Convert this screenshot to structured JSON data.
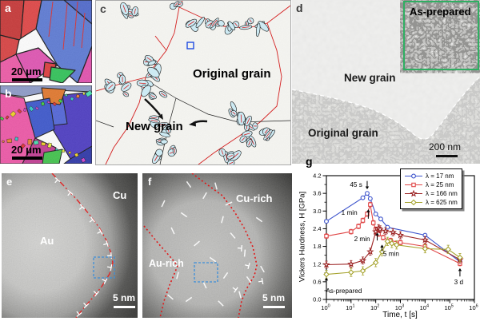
{
  "figure": {
    "panels": {
      "a": {
        "label": "a",
        "scale_bar": "20 μm"
      },
      "b": {
        "label": "b",
        "scale_bar": "20 μm"
      },
      "c": {
        "label": "c",
        "original_grain": "Original grain",
        "new_grain": "New grain"
      },
      "d": {
        "label": "d",
        "inset_label": "As-prepared",
        "new_grain": "New grain",
        "original_grain": "Original grain",
        "scale_bar": "200 nm"
      },
      "e": {
        "label": "e",
        "upper_region": "Cu",
        "lower_region": "Au",
        "scale_bar": "5 nm"
      },
      "f": {
        "label": "f",
        "upper_region": "Cu-rich",
        "lower_region": "Au-rich",
        "scale_bar": "5 nm"
      },
      "g": {
        "label": "g"
      }
    }
  },
  "chart_data": {
    "type": "line",
    "x_scale": "log",
    "xlabel": "Time, t [s]",
    "ylabel": "Vickers Hardness, H [GPa]",
    "xlim": [
      1,
      1000000
    ],
    "ylim": [
      0,
      4.2
    ],
    "y_ticks": [
      0,
      0.6,
      1.2,
      1.8,
      2.4,
      3,
      3.6,
      4.2
    ],
    "x_tick_exponents": [
      0,
      1,
      2,
      3,
      4,
      5,
      6
    ],
    "grid": false,
    "legend_position": "top-right",
    "series": [
      {
        "name": "λ = 17 nm",
        "color": "#3b52cc",
        "marker": "circle",
        "err": 0.05,
        "points": [
          [
            1,
            2.65
          ],
          [
            30,
            3.45
          ],
          [
            45,
            3.6
          ],
          [
            60,
            3.42
          ],
          [
            100,
            2.9
          ],
          [
            160,
            2.73
          ],
          [
            300,
            2.45
          ],
          [
            10000,
            2.18
          ],
          [
            259200,
            1.28
          ]
        ]
      },
      {
        "name": "λ = 25 nm",
        "color": "#e04848",
        "marker": "square",
        "err": 0.08,
        "points": [
          [
            1,
            2.15
          ],
          [
            10,
            2.3
          ],
          [
            20,
            2.48
          ],
          [
            30,
            2.68
          ],
          [
            45,
            2.9
          ],
          [
            60,
            3.22
          ],
          [
            80,
            2.6
          ],
          [
            100,
            2.38
          ],
          [
            130,
            2.22
          ],
          [
            200,
            2.1
          ],
          [
            400,
            2.0
          ],
          [
            1000,
            1.93
          ],
          [
            10000,
            1.8
          ],
          [
            259200,
            1.22
          ]
        ]
      },
      {
        "name": "λ = 166 nm",
        "color": "#9c2424",
        "marker": "star",
        "err": 0.12,
        "points": [
          [
            1,
            1.18
          ],
          [
            10,
            1.2
          ],
          [
            30,
            1.32
          ],
          [
            60,
            1.62
          ],
          [
            100,
            2.3
          ],
          [
            130,
            2.42
          ],
          [
            150,
            2.38
          ],
          [
            250,
            2.32
          ],
          [
            500,
            2.28
          ],
          [
            1000,
            2.18
          ],
          [
            10000,
            2.02
          ],
          [
            259200,
            1.35
          ]
        ]
      },
      {
        "name": "λ = 625 nm",
        "color": "#a6a32e",
        "marker": "diamond",
        "err": 0.14,
        "points": [
          [
            1,
            0.85
          ],
          [
            10,
            0.92
          ],
          [
            30,
            0.97
          ],
          [
            100,
            1.25
          ],
          [
            180,
            1.62
          ],
          [
            300,
            1.97
          ],
          [
            450,
            1.9
          ],
          [
            700,
            1.85
          ],
          [
            10000,
            1.72
          ],
          [
            86400,
            1.7
          ],
          [
            259200,
            1.42
          ]
        ]
      }
    ],
    "annotations": [
      {
        "text": "45 s",
        "t": 16,
        "H": 3.9,
        "arrow": {
          "t": 45,
          "H1": 4.02,
          "H2": 3.74
        }
      },
      {
        "text": "1 min",
        "t": 8.5,
        "H": 2.95,
        "arrow": {
          "t": 50,
          "H1": 2.74,
          "H2": 3.06
        }
      },
      {
        "text": "2 min",
        "t": 28,
        "H": 2.06,
        "arrow": {
          "t": 115,
          "H1": 2.0,
          "H2": 2.27
        }
      },
      {
        "text": "5 min",
        "t": 420,
        "H": 1.56,
        "arrow": {
          "t": 180,
          "H1": 1.64,
          "H2": 1.86
        }
      },
      {
        "text": "As-prepared",
        "t": 0.95,
        "H": 0.3,
        "anchor": "start",
        "arrow": {
          "t": 1,
          "H1": 0.44,
          "H2": 0.74
        }
      },
      {
        "text": "3 d",
        "t": 230000,
        "H": 0.6,
        "arrow": {
          "t": 259200,
          "H1": 0.78,
          "H2": 1.06
        }
      }
    ]
  }
}
